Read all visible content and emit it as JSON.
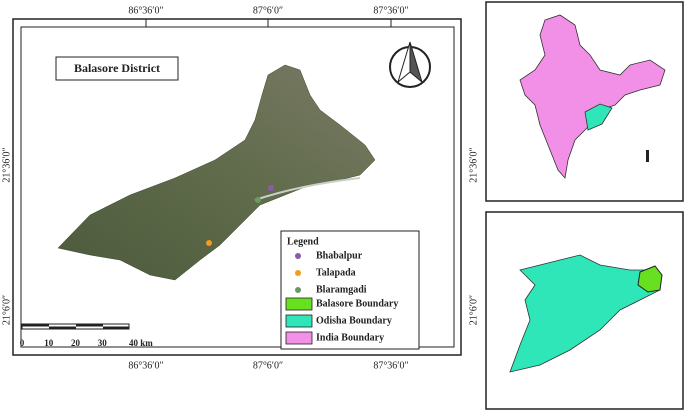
{
  "map": {
    "title": "Balasore District",
    "coords": {
      "top": [
        "86°36′0″",
        "87°6′0″",
        "87°36′0″"
      ],
      "bottom": [
        "86°36′0″",
        "87°6′0″",
        "87°36′0″"
      ],
      "left": [
        "21°36′0″",
        "21°6′0″"
      ],
      "right": [
        "21°36′0″",
        "21°6′0″"
      ]
    },
    "scale": [
      "0",
      "10",
      "20",
      "30",
      "40 km"
    ],
    "legend": {
      "title": "Legend",
      "points": [
        {
          "name": "Bhabalpur",
          "color": "#8a5ba8"
        },
        {
          "name": "Talapada",
          "color": "#f39c1e"
        },
        {
          "name": "Blaramgadi",
          "color": "#6a9a63"
        }
      ],
      "areas": [
        {
          "name": "Balasore Boundary",
          "color": "#66e01f"
        },
        {
          "name": "Odisha Boundary",
          "color": "#2ee6b8"
        },
        {
          "name": "India Boundary",
          "color": "#f28fe6"
        }
      ]
    }
  }
}
